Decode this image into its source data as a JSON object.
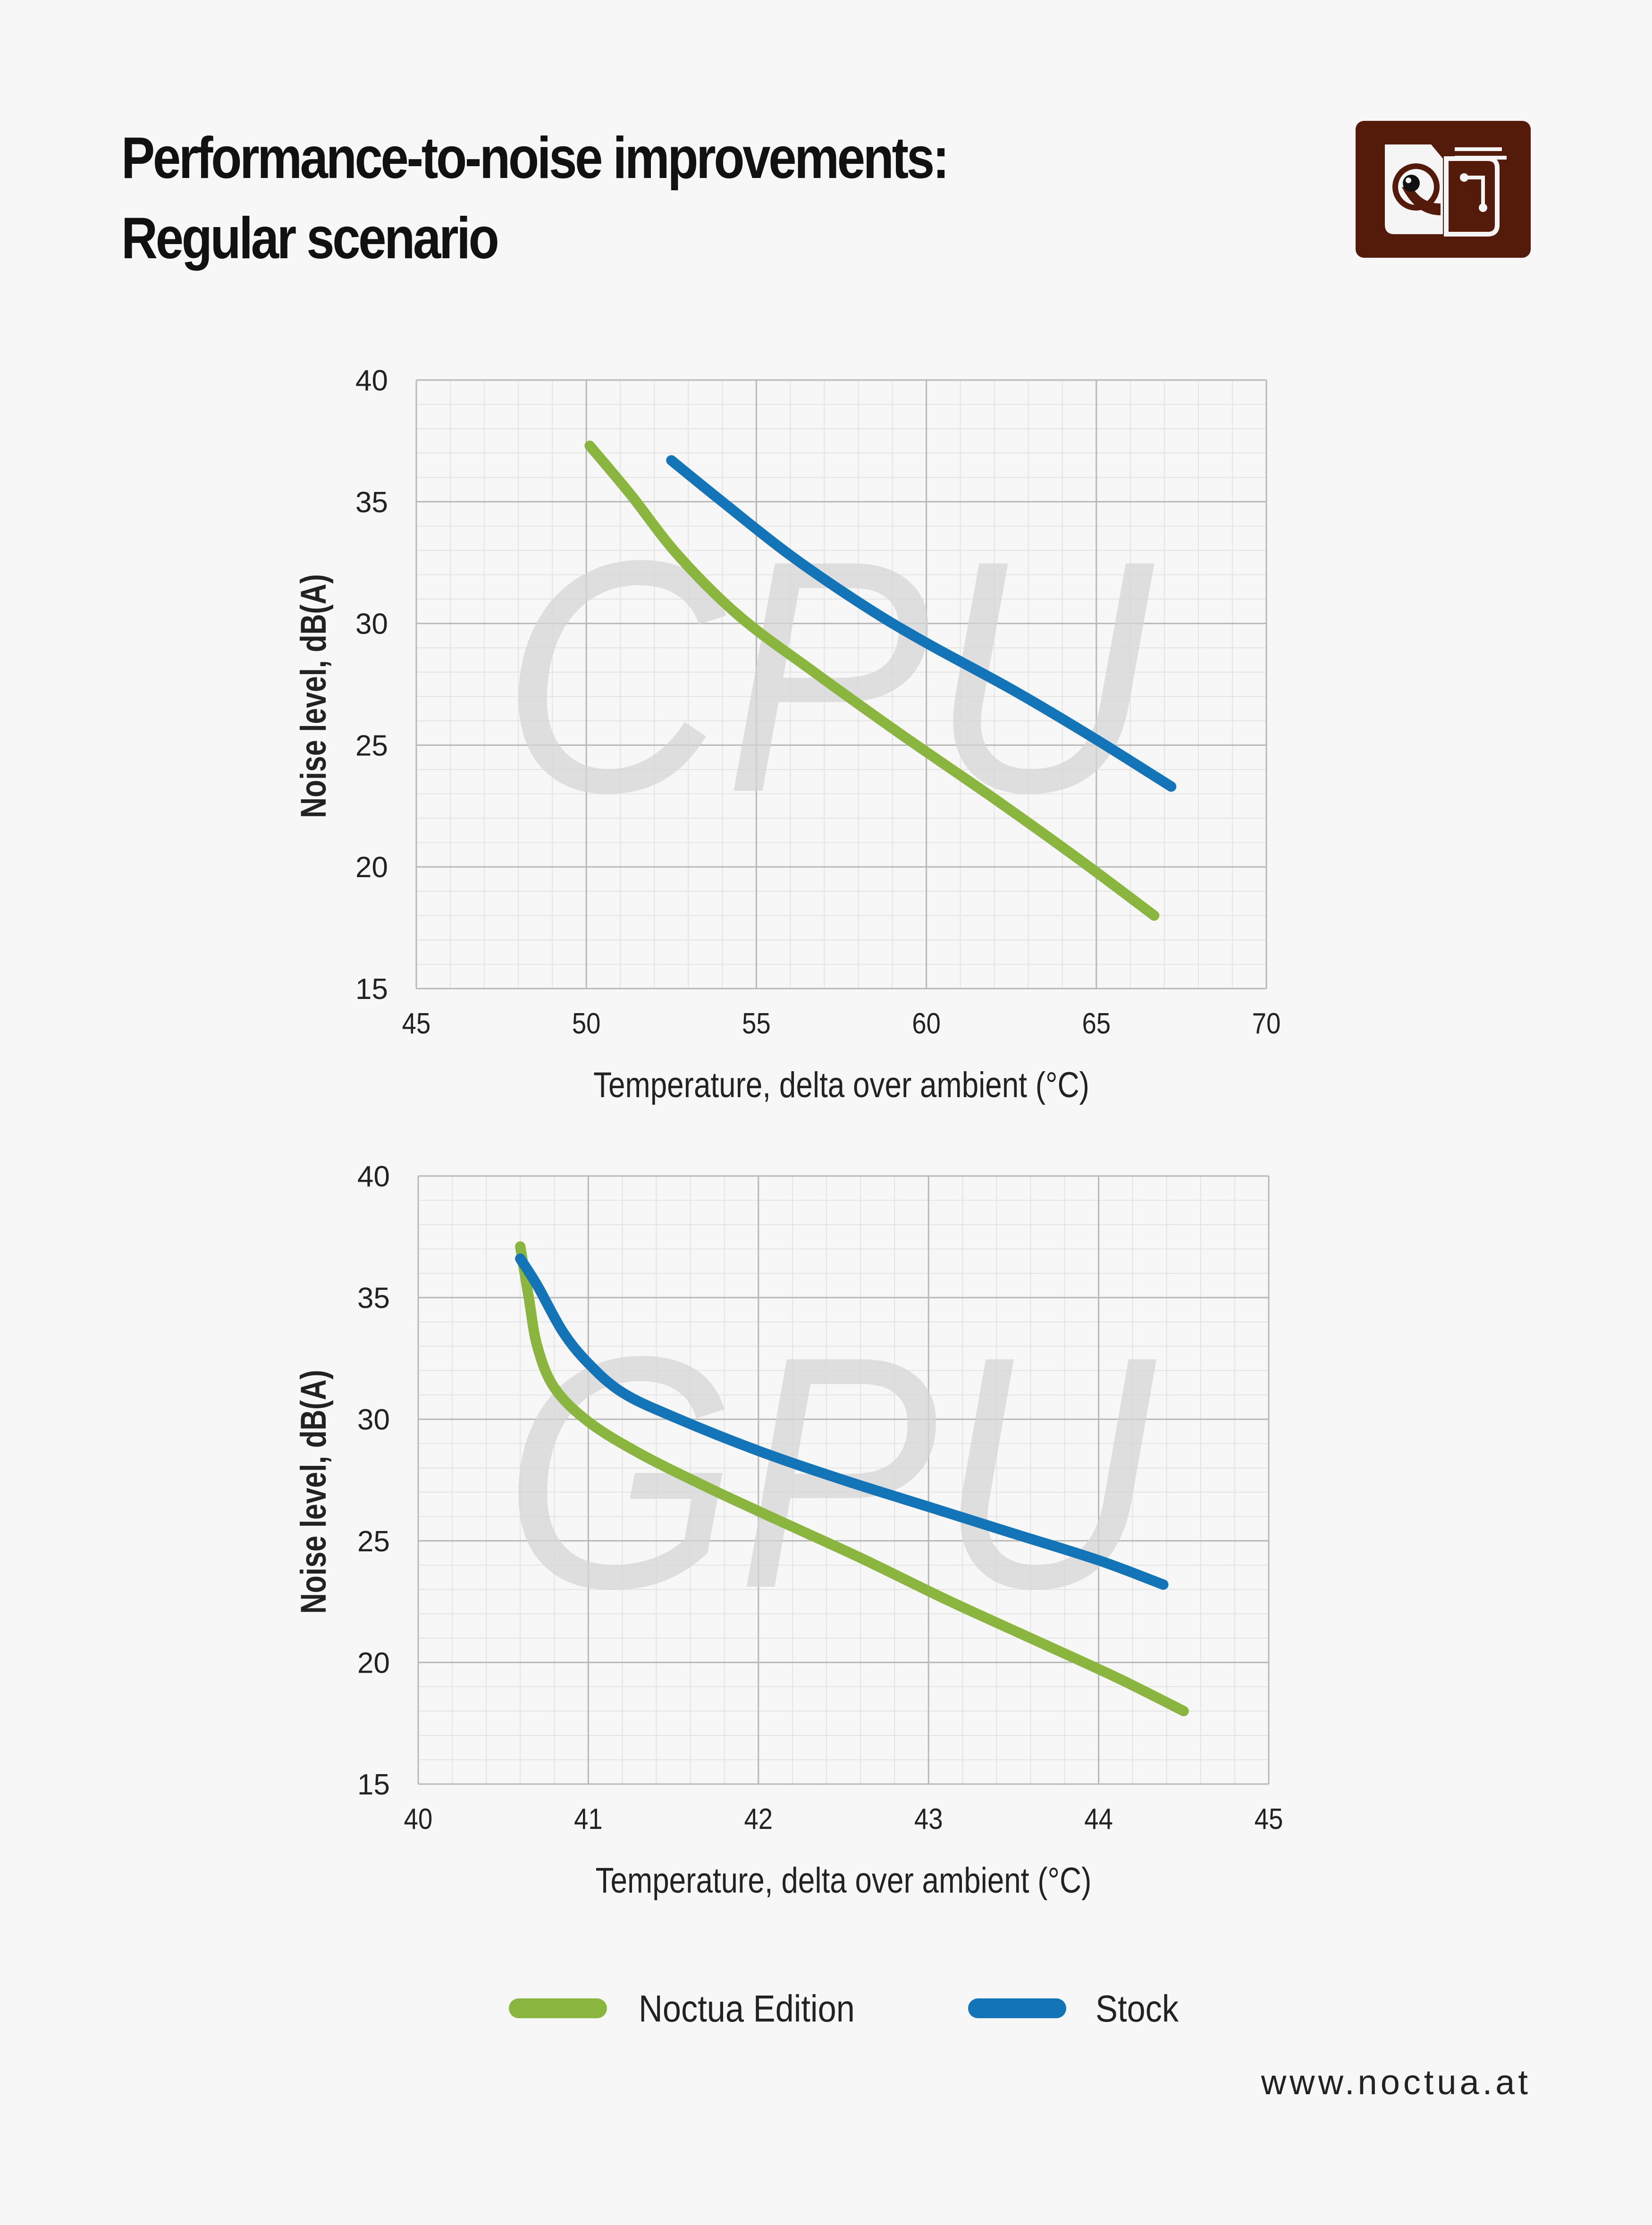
{
  "header": {
    "title_line1": "Performance-to-noise improvements:",
    "title_line2": "Regular scenario"
  },
  "colors": {
    "noctua_edition": "#8ab640",
    "stock": "#1474b8",
    "logo_bg": "#541a0a",
    "grid_major": "#b8b8b8",
    "grid_minor": "#e4e4e4",
    "watermark": "#d6d6d6"
  },
  "legend": {
    "items": [
      {
        "label": "Noctua Edition",
        "color": "#8ab640"
      },
      {
        "label": "Stock",
        "color": "#1474b8"
      }
    ]
  },
  "footer": {
    "url": "www.noctua.at"
  },
  "chart_data": [
    {
      "type": "line",
      "title": "",
      "watermark": "CPU",
      "xlabel": "Temperature, delta over ambient (°C)",
      "ylabel": "Noise level, dB(A)",
      "xlim": [
        45,
        70
      ],
      "ylim": [
        15,
        40
      ],
      "xticks": [
        45,
        50,
        55,
        60,
        65,
        70
      ],
      "yticks": [
        15,
        20,
        25,
        30,
        35,
        40
      ],
      "grid": true,
      "series": [
        {
          "name": "Noctua Edition",
          "color": "#8ab640",
          "points": [
            [
              50.1,
              37.3
            ],
            [
              51.3,
              35.3
            ],
            [
              52.7,
              32.8
            ],
            [
              54.5,
              30.3
            ],
            [
              56.7,
              28.0
            ],
            [
              59.3,
              25.4
            ],
            [
              62.0,
              22.8
            ],
            [
              64.5,
              20.3
            ],
            [
              66.7,
              18.0
            ]
          ]
        },
        {
          "name": "Stock",
          "color": "#1474b8",
          "points": [
            [
              52.5,
              36.7
            ],
            [
              54.0,
              35.0
            ],
            [
              56.0,
              32.8
            ],
            [
              58.2,
              30.7
            ],
            [
              60.0,
              29.2
            ],
            [
              62.5,
              27.3
            ],
            [
              64.8,
              25.4
            ],
            [
              67.2,
              23.3
            ]
          ]
        }
      ]
    },
    {
      "type": "line",
      "title": "",
      "watermark": "GPU",
      "xlabel": "Temperature, delta over ambient (°C)",
      "ylabel": "Noise level, dB(A)",
      "xlim": [
        40,
        45
      ],
      "ylim": [
        15,
        40
      ],
      "xticks": [
        40,
        41,
        42,
        43,
        44,
        45
      ],
      "yticks": [
        15,
        20,
        25,
        30,
        35,
        40
      ],
      "grid": true,
      "series": [
        {
          "name": "Noctua Edition",
          "color": "#8ab640",
          "points": [
            [
              40.6,
              37.1
            ],
            [
              40.65,
              35.0
            ],
            [
              40.7,
              33.0
            ],
            [
              40.8,
              31.3
            ],
            [
              41.0,
              29.9
            ],
            [
              41.3,
              28.6
            ],
            [
              41.7,
              27.2
            ],
            [
              42.1,
              25.9
            ],
            [
              42.6,
              24.3
            ],
            [
              43.1,
              22.6
            ],
            [
              43.6,
              21.0
            ],
            [
              44.1,
              19.4
            ],
            [
              44.5,
              18.0
            ]
          ]
        },
        {
          "name": "Stock",
          "color": "#1474b8",
          "points": [
            [
              40.6,
              36.6
            ],
            [
              40.7,
              35.5
            ],
            [
              40.85,
              33.6
            ],
            [
              41.0,
              32.3
            ],
            [
              41.2,
              31.1
            ],
            [
              41.5,
              30.1
            ],
            [
              42.0,
              28.7
            ],
            [
              42.5,
              27.5
            ],
            [
              43.0,
              26.4
            ],
            [
              43.5,
              25.3
            ],
            [
              44.0,
              24.2
            ],
            [
              44.38,
              23.2
            ]
          ]
        }
      ]
    }
  ]
}
